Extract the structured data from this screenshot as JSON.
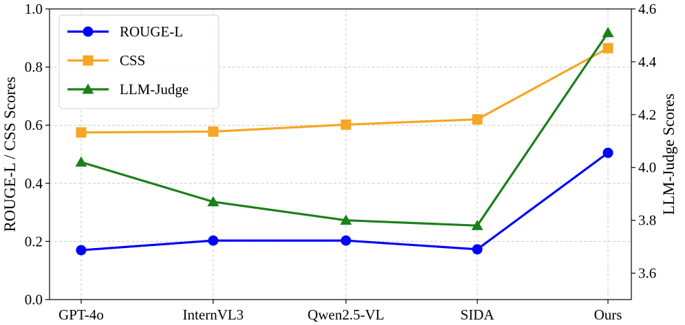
{
  "chart_data": {
    "type": "line",
    "categories": [
      "GPT-4o",
      "InternVL3",
      "Qwen2.5-VL",
      "SIDA",
      "Ours"
    ],
    "left_axis": {
      "label": "ROUGE-L / CSS Scores",
      "range": [
        0.0,
        1.0
      ],
      "ticks": [
        "0.0",
        "0.2",
        "0.4",
        "0.6",
        "0.8",
        "1.0"
      ],
      "tick_values": [
        0.0,
        0.2,
        0.4,
        0.6,
        0.8,
        1.0
      ]
    },
    "right_axis": {
      "label": "LLM-Judge Scores",
      "range": [
        3.5,
        4.6
      ],
      "ticks": [
        "3.6",
        "3.8",
        "4.0",
        "4.2",
        "4.4",
        "4.6"
      ],
      "tick_values": [
        3.6,
        3.8,
        4.0,
        4.2,
        4.4,
        4.6
      ]
    },
    "grid": true,
    "legend_position": "top-left",
    "series": [
      {
        "name": "ROUGE-L",
        "axis": "left",
        "color": "#0000ff",
        "marker": "circle",
        "values": [
          0.17,
          0.203,
          0.203,
          0.173,
          0.505
        ]
      },
      {
        "name": "CSS",
        "axis": "left",
        "color": "#f5a623",
        "marker": "square",
        "values": [
          0.575,
          0.578,
          0.602,
          0.62,
          0.865
        ]
      },
      {
        "name": "LLM-Judge",
        "axis": "right",
        "color": "#1a801a",
        "marker": "triangle",
        "values": [
          4.02,
          3.87,
          3.8,
          3.78,
          4.51
        ]
      }
    ]
  }
}
